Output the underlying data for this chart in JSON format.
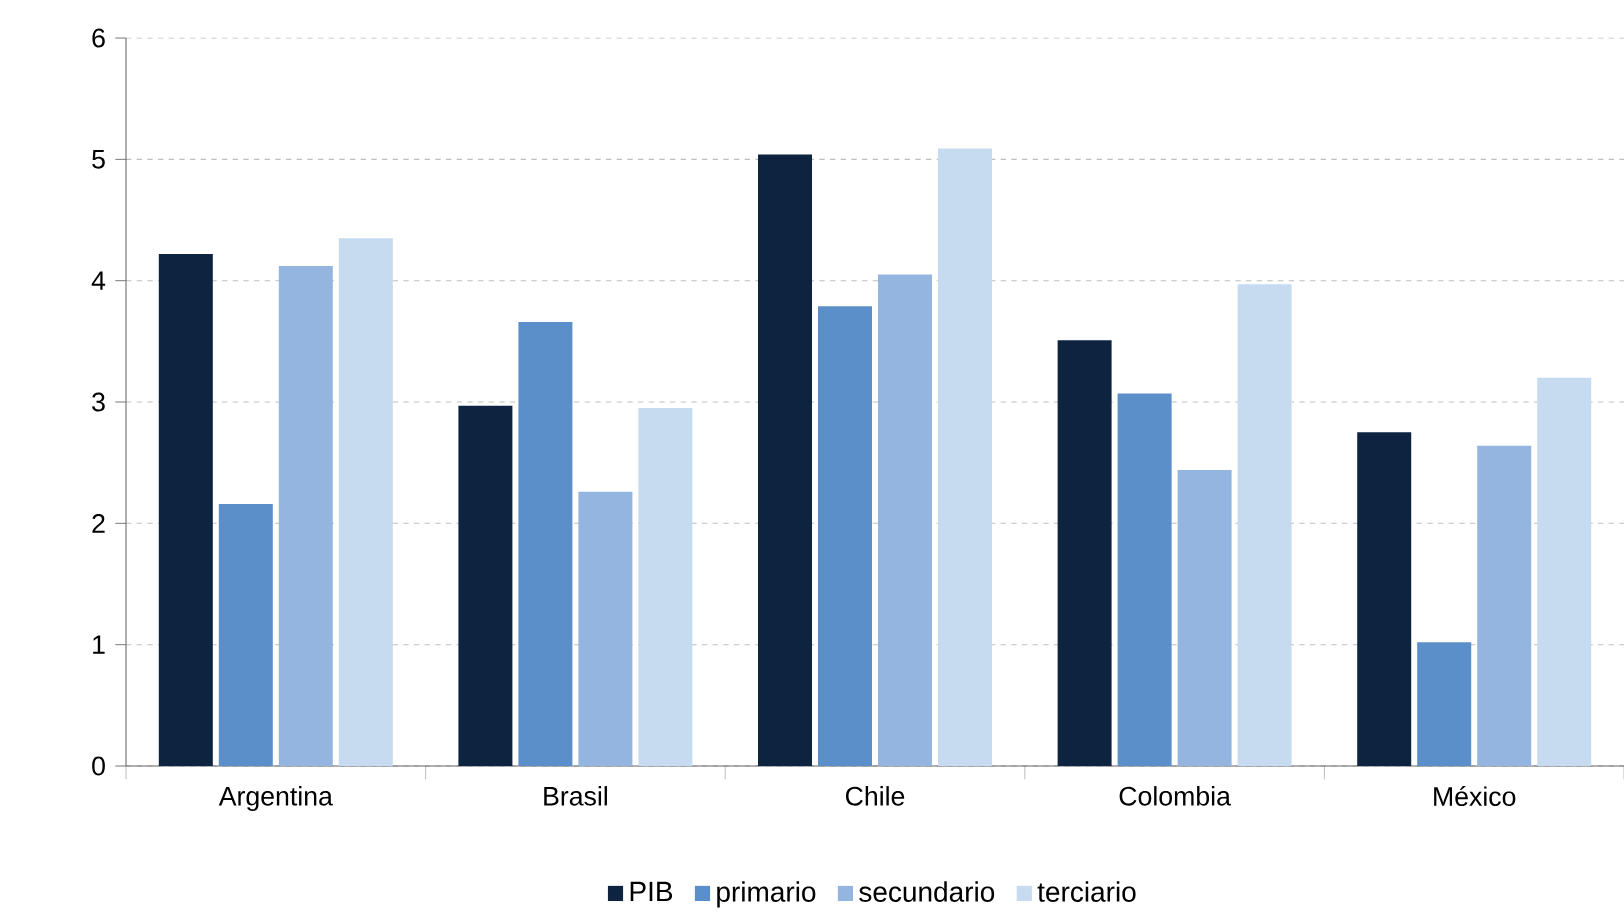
{
  "chart_data": {
    "type": "bar",
    "categories": [
      "Argentina",
      "Brasil",
      "Chile",
      "Colombia",
      "México"
    ],
    "series": [
      {
        "name": "PIB",
        "color": "#0d2340",
        "values": [
          4.22,
          2.97,
          5.04,
          3.51,
          2.75
        ]
      },
      {
        "name": "primario",
        "color": "#5b8fc9",
        "values": [
          2.16,
          3.66,
          3.79,
          3.07,
          1.02
        ]
      },
      {
        "name": "secundario",
        "color": "#93b5e0",
        "values": [
          4.12,
          2.26,
          4.05,
          2.44,
          2.64
        ]
      },
      {
        "name": "terciario",
        "color": "#c6daf0",
        "values": [
          4.35,
          2.95,
          5.09,
          3.97,
          3.2
        ]
      }
    ],
    "ylim": [
      0,
      6
    ],
    "yticks": [
      0,
      1,
      2,
      3,
      4,
      5,
      6
    ],
    "grid": "y",
    "legend": "bottom"
  }
}
